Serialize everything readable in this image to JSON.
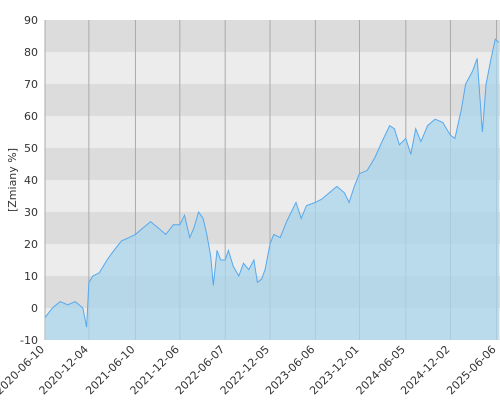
{
  "chart_data": {
    "type": "area",
    "y_label": "[Zmiany %]",
    "x": [
      "2020-06-10",
      "2020-07-10",
      "2020-08-10",
      "2020-09-10",
      "2020-10-10",
      "2020-11-10",
      "2020-11-25",
      "2020-12-04",
      "2020-12-20",
      "2021-01-15",
      "2021-02-15",
      "2021-03-15",
      "2021-04-15",
      "2021-05-15",
      "2021-06-10",
      "2021-07-10",
      "2021-08-10",
      "2021-09-10",
      "2021-10-10",
      "2021-11-10",
      "2021-12-06",
      "2021-12-25",
      "2022-01-15",
      "2022-02-01",
      "2022-02-20",
      "2022-03-10",
      "2022-03-25",
      "2022-04-10",
      "2022-04-20",
      "2022-05-05",
      "2022-05-20",
      "2022-06-07",
      "2022-06-20",
      "2022-07-10",
      "2022-08-01",
      "2022-08-20",
      "2022-09-10",
      "2022-10-01",
      "2022-10-15",
      "2022-11-01",
      "2022-11-15",
      "2022-12-05",
      "2022-12-20",
      "2023-01-15",
      "2023-02-10",
      "2023-03-01",
      "2023-03-20",
      "2023-04-10",
      "2023-05-01",
      "2023-06-06",
      "2023-07-01",
      "2023-08-01",
      "2023-09-01",
      "2023-10-01",
      "2023-10-20",
      "2023-11-10",
      "2023-12-01",
      "2024-01-01",
      "2024-02-01",
      "2024-03-01",
      "2024-04-01",
      "2024-04-20",
      "2024-05-10",
      "2024-06-05",
      "2024-06-25",
      "2024-07-15",
      "2024-08-05",
      "2024-09-01",
      "2024-10-01",
      "2024-11-01",
      "2024-12-02",
      "2024-12-20",
      "2025-01-15",
      "2025-02-01",
      "2025-03-01",
      "2025-03-20",
      "2025-04-05",
      "2025-04-10",
      "2025-04-25",
      "2025-05-15",
      "2025-06-01",
      "2025-06-15"
    ],
    "series": [
      {
        "color": "#55a8ee",
        "fill": "#a9d6ec",
        "values": [
          -3,
          0,
          2,
          1,
          2,
          0,
          -6,
          8,
          10,
          11,
          15,
          18,
          21,
          22,
          23,
          25,
          27,
          25,
          23,
          26,
          26,
          29,
          22,
          25,
          30,
          28,
          23,
          16,
          7,
          18,
          15,
          15,
          18,
          13,
          10,
          14,
          12,
          15,
          8,
          9,
          12,
          20,
          23,
          22,
          27,
          30,
          33,
          28,
          32,
          33,
          34,
          36,
          38,
          36,
          33,
          38,
          42,
          43,
          47,
          52,
          57,
          56,
          51,
          53,
          48,
          56,
          52,
          57,
          59,
          58,
          54,
          53,
          62,
          70,
          74,
          78,
          60,
          55,
          70,
          78,
          84,
          83
        ]
      }
    ],
    "xlim": [
      "2020-06-10",
      "2025-06-20"
    ],
    "xticks": [
      "2020-06-10",
      "2020-12-04",
      "2021-06-10",
      "2021-12-06",
      "2022-06-07",
      "2022-12-05",
      "2023-06-06",
      "2023-12-01",
      "2024-06-05",
      "2024-12-02",
      "2025-06-06"
    ],
    "ylim": [
      -10,
      90
    ],
    "yticks": [
      -10,
      0,
      10,
      20,
      30,
      40,
      50,
      60,
      70,
      80,
      90
    ],
    "grid": true
  }
}
